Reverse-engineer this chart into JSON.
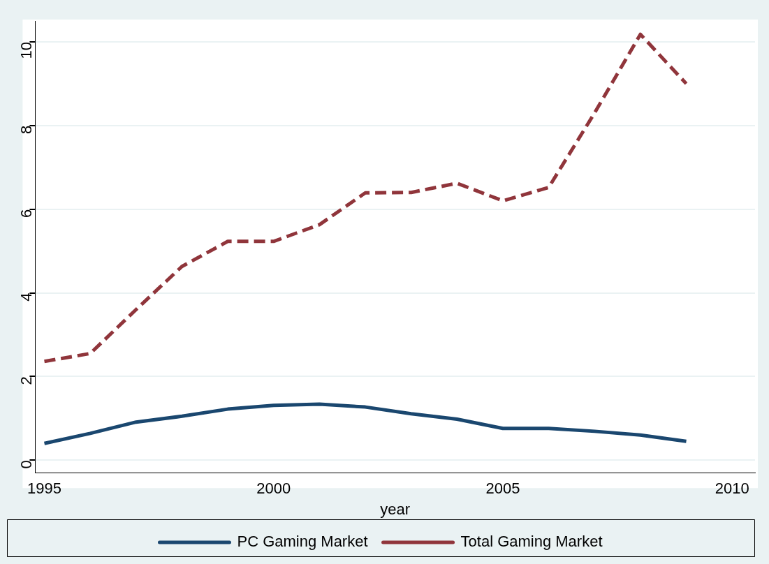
{
  "chart_data": {
    "type": "line",
    "xlabel": "year",
    "x": [
      1995,
      1996,
      1997,
      1998,
      1999,
      2000,
      2001,
      2002,
      2003,
      2004,
      2005,
      2006,
      2007,
      2008,
      2009
    ],
    "series": [
      {
        "name": "PC Gaming Market",
        "color": "#1a476f",
        "line_style": "solid",
        "values": [
          0.4,
          0.64,
          0.91,
          1.05,
          1.22,
          1.31,
          1.34,
          1.27,
          1.11,
          0.98,
          0.76,
          0.76,
          0.69,
          0.6,
          0.45
        ]
      },
      {
        "name": "Total Gaming Market",
        "color": "#90353b",
        "line_style": "dashed",
        "values": [
          2.36,
          2.55,
          3.6,
          4.63,
          5.23,
          5.23,
          5.63,
          6.39,
          6.4,
          6.62,
          6.2,
          6.52,
          8.3,
          10.18,
          9.0
        ]
      }
    ],
    "xlim": [
      1994.8,
      2010.5
    ],
    "xticks": [
      1995,
      2000,
      2005,
      2010
    ],
    "ylim": [
      -0.3,
      10.5
    ],
    "yticks": [
      0,
      2,
      4,
      6,
      8,
      10
    ],
    "grid": "y",
    "legend": "bottom",
    "marker": "none"
  }
}
